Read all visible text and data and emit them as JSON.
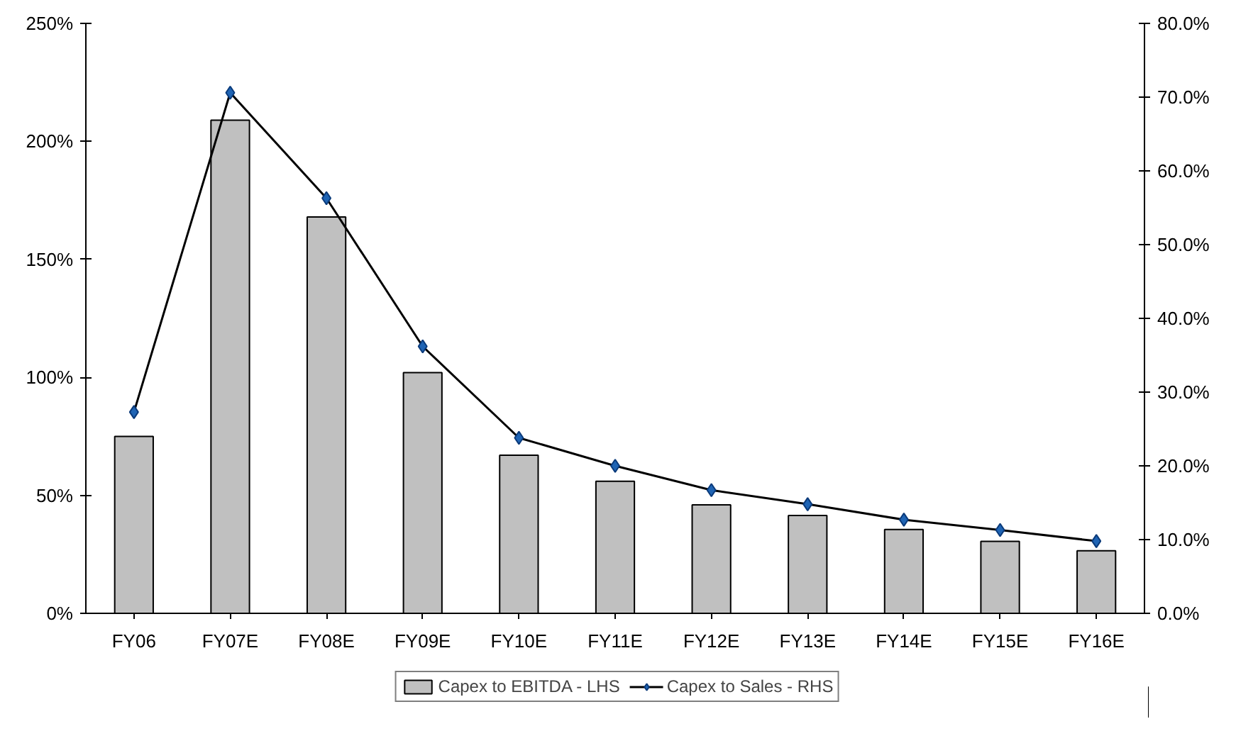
{
  "chart_data": {
    "type": "bar",
    "categories": [
      "FY06",
      "FY07E",
      "FY08E",
      "FY09E",
      "FY10E",
      "FY11E",
      "FY12E",
      "FY13E",
      "FY14E",
      "FY15E",
      "FY16E"
    ],
    "series": [
      {
        "name": "Capex to EBITDA - LHS",
        "color": "#c0c0c0",
        "values": [
          75,
          209,
          168,
          102,
          67,
          56,
          46,
          41.5,
          35.5,
          30.5,
          26.5
        ]
      },
      {
        "name": "Capex to Sales - RHS",
        "type": "line",
        "axis": "y2",
        "color": "#1f64b4",
        "marker": "diamond",
        "values": [
          27.3,
          70.6,
          56.3,
          36.2,
          23.8,
          20.0,
          16.7,
          14.8,
          12.7,
          11.3,
          9.8
        ]
      }
    ],
    "ylim": [
      0,
      250
    ],
    "yticks": [
      {
        "value": 0,
        "label": "0%"
      },
      {
        "value": 50,
        "label": "50%"
      },
      {
        "value": 100,
        "label": "100%"
      },
      {
        "value": 150,
        "label": "150%"
      },
      {
        "value": 200,
        "label": "200%"
      },
      {
        "value": 250,
        "label": "250%"
      }
    ],
    "y2lim": [
      0,
      80
    ],
    "y2ticks": [
      {
        "value": 0,
        "label": "0.0%"
      },
      {
        "value": 10,
        "label": "10.0%"
      },
      {
        "value": 20,
        "label": "20.0%"
      },
      {
        "value": 30,
        "label": "30.0%"
      },
      {
        "value": 40,
        "label": "40.0%"
      },
      {
        "value": 50,
        "label": "50.0%"
      },
      {
        "value": 60,
        "label": "60.0%"
      },
      {
        "value": 70,
        "label": "70.0%"
      },
      {
        "value": 80,
        "label": "80.0%"
      }
    ],
    "grid": false,
    "legend": "bottom"
  }
}
